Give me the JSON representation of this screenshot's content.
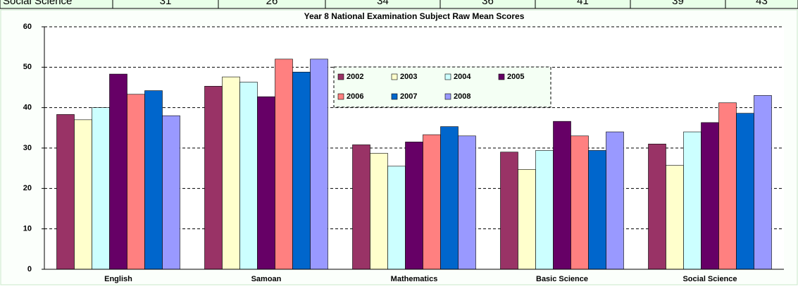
{
  "table": {
    "rows": [
      [
        "Social Science",
        31,
        26,
        34,
        36,
        41,
        39,
        43
      ]
    ]
  },
  "chart_data": {
    "type": "bar",
    "title": "Year 8 National Examination Subject Raw Mean Scores",
    "categories": [
      "English",
      "Samoan",
      "Mathematics",
      "Basic Science",
      "Social Science"
    ],
    "series": [
      {
        "name": "2002",
        "color": "#993366",
        "values": [
          38.3,
          45.3,
          30.8,
          29,
          31
        ]
      },
      {
        "name": "2003",
        "color": "#ffffcc",
        "values": [
          37,
          47.6,
          28.7,
          24.7,
          25.7
        ]
      },
      {
        "name": "2004",
        "color": "#ccffff",
        "values": [
          40,
          46.3,
          25.5,
          29.4,
          34
        ]
      },
      {
        "name": "2005",
        "color": "#660066",
        "values": [
          48.3,
          42.7,
          31.5,
          36.6,
          36.3
        ]
      },
      {
        "name": "2006",
        "color": "#ff8080",
        "values": [
          43.3,
          52,
          33.3,
          33,
          41.2
        ]
      },
      {
        "name": "2007",
        "color": "#0066cc",
        "values": [
          44.2,
          48.8,
          35.3,
          29.4,
          38.6
        ]
      },
      {
        "name": "2008",
        "color": "#9999ff",
        "values": [
          38,
          52,
          33,
          34,
          43
        ]
      }
    ],
    "ylim": [
      0,
      60
    ],
    "yticks": [
      0,
      10,
      20,
      30,
      40,
      50,
      60
    ],
    "grid": true,
    "legend": "inside-top-center"
  }
}
